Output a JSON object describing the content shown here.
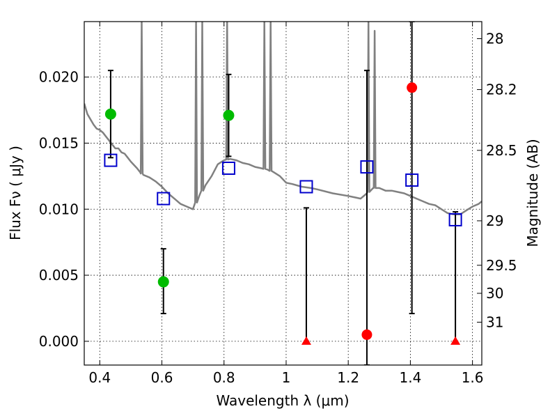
{
  "chart_data": {
    "type": "scatter",
    "xlabel": "Wavelength  λ (μm)",
    "ylabel": "Flux  Fν  ( μJy )",
    "y2label": "Magnitude (AB)",
    "xlim": [
      0.35,
      1.63
    ],
    "ylim": [
      -0.0018,
      0.0242
    ],
    "grid": true,
    "x_ticks": [
      {
        "value": 0.4,
        "label": "0.4"
      },
      {
        "value": 0.6,
        "label": "0.6"
      },
      {
        "value": 0.8,
        "label": "0.8"
      },
      {
        "value": 1.0,
        "label": "1"
      },
      {
        "value": 1.2,
        "label": "1.2"
      },
      {
        "value": 1.4,
        "label": "1.4"
      },
      {
        "value": 1.6,
        "label": "1.6"
      }
    ],
    "y_ticks": [
      {
        "value": 0.0,
        "label": "0.000"
      },
      {
        "value": 0.005,
        "label": "0.005"
      },
      {
        "value": 0.01,
        "label": "0.010"
      },
      {
        "value": 0.015,
        "label": "0.015"
      },
      {
        "value": 0.02,
        "label": "0.020"
      }
    ],
    "y2_ticks": [
      {
        "label": "28",
        "mag": 28.0
      },
      {
        "label": "28.2",
        "mag": 28.2
      },
      {
        "label": "28.5",
        "mag": 28.5
      },
      {
        "label": "29",
        "mag": 29.0
      },
      {
        "label": "29.5",
        "mag": 29.5
      },
      {
        "label": "30",
        "mag": 30.0
      },
      {
        "label": "31",
        "mag": 31.0
      }
    ],
    "colors": {
      "model": "#808080",
      "model_points": "#0000cc",
      "detections": "#00bb00",
      "upper_limits": "#ff0000",
      "errorbar": "#000000",
      "grid": "#000000"
    },
    "model_spectrum": [
      [
        0.35,
        0.018
      ],
      [
        0.36,
        0.0172
      ],
      [
        0.37,
        0.0168
      ],
      [
        0.38,
        0.0164
      ],
      [
        0.39,
        0.0161
      ],
      [
        0.4,
        0.016
      ],
      [
        0.41,
        0.0158
      ],
      [
        0.42,
        0.0155
      ],
      [
        0.43,
        0.0152
      ],
      [
        0.44,
        0.0149
      ],
      [
        0.45,
        0.0146
      ],
      [
        0.46,
        0.0146
      ],
      [
        0.47,
        0.0143
      ],
      [
        0.48,
        0.0142
      ],
      [
        0.49,
        0.0139
      ],
      [
        0.5,
        0.0136
      ],
      [
        0.52,
        0.0131
      ],
      [
        0.53,
        0.0128
      ],
      [
        0.54,
        0.0126
      ],
      [
        0.56,
        0.0124
      ],
      [
        0.58,
        0.0121
      ],
      [
        0.6,
        0.0117
      ],
      [
        0.62,
        0.0112
      ],
      [
        0.64,
        0.0108
      ],
      [
        0.66,
        0.0104
      ],
      [
        0.68,
        0.0102
      ],
      [
        0.7,
        0.01
      ],
      [
        0.72,
        0.011
      ],
      [
        0.74,
        0.0118
      ],
      [
        0.76,
        0.0125
      ],
      [
        0.78,
        0.0134
      ],
      [
        0.8,
        0.0137
      ],
      [
        0.82,
        0.0138
      ],
      [
        0.84,
        0.0137
      ],
      [
        0.86,
        0.0135
      ],
      [
        0.88,
        0.0134
      ],
      [
        0.9,
        0.0132
      ],
      [
        0.92,
        0.0131
      ],
      [
        0.94,
        0.013
      ],
      [
        0.96,
        0.0128
      ],
      [
        0.98,
        0.0125
      ],
      [
        1.0,
        0.012
      ],
      [
        1.02,
        0.0119
      ],
      [
        1.05,
        0.0117
      ],
      [
        1.08,
        0.0116
      ],
      [
        1.1,
        0.0115
      ],
      [
        1.15,
        0.0112
      ],
      [
        1.2,
        0.011
      ],
      [
        1.24,
        0.0108
      ],
      [
        1.26,
        0.0112
      ],
      [
        1.28,
        0.0116
      ],
      [
        1.3,
        0.0116
      ],
      [
        1.32,
        0.0114
      ],
      [
        1.34,
        0.0114
      ],
      [
        1.36,
        0.0113
      ],
      [
        1.38,
        0.0112
      ],
      [
        1.4,
        0.011
      ],
      [
        1.42,
        0.0108
      ],
      [
        1.44,
        0.0106
      ],
      [
        1.46,
        0.0104
      ],
      [
        1.48,
        0.0103
      ],
      [
        1.5,
        0.01
      ],
      [
        1.52,
        0.0097
      ],
      [
        1.54,
        0.0096
      ],
      [
        1.56,
        0.0096
      ],
      [
        1.58,
        0.0099
      ],
      [
        1.6,
        0.0102
      ],
      [
        1.62,
        0.0104
      ],
      [
        1.63,
        0.0106
      ]
    ],
    "emission_lines": [
      {
        "x": 0.535,
        "peak": 0.0242
      },
      {
        "x": 0.71,
        "peak": 0.0242
      },
      {
        "x": 0.73,
        "peak": 0.0242
      },
      {
        "x": 0.81,
        "peak": 0.0242
      },
      {
        "x": 0.93,
        "peak": 0.0242
      },
      {
        "x": 0.95,
        "peak": 0.0242
      },
      {
        "x": 1.265,
        "peak": 0.0242
      },
      {
        "x": 1.285,
        "peak": 0.0235
      }
    ],
    "model_points": [
      {
        "x": 0.435,
        "y": 0.0137
      },
      {
        "x": 0.605,
        "y": 0.0108
      },
      {
        "x": 0.815,
        "y": 0.0131
      },
      {
        "x": 1.065,
        "y": 0.0117
      },
      {
        "x": 1.26,
        "y": 0.0132
      },
      {
        "x": 1.405,
        "y": 0.0122
      },
      {
        "x": 1.545,
        "y": 0.0092
      }
    ],
    "detections": [
      {
        "x": 0.435,
        "y": 0.0172,
        "err_low": 0.0139,
        "err_high": 0.0205
      },
      {
        "x": 0.605,
        "y": 0.0045,
        "err_low": 0.0021,
        "err_high": 0.007
      },
      {
        "x": 0.815,
        "y": 0.0171,
        "err_low": 0.014,
        "err_high": 0.0202
      }
    ],
    "upper_limits": [
      {
        "x": 1.065,
        "y": 0.0,
        "marker": "triangle",
        "err_high": 0.0101
      },
      {
        "x": 1.26,
        "y": 0.0005,
        "marker": "circle",
        "err_low": -0.0018,
        "err_high": 0.0205
      },
      {
        "x": 1.405,
        "y": 0.0192,
        "marker": "circle",
        "err_low": 0.0021,
        "err_high": 0.0242
      },
      {
        "x": 1.545,
        "y": 0.0,
        "marker": "triangle",
        "err_high": 0.0098
      }
    ]
  }
}
